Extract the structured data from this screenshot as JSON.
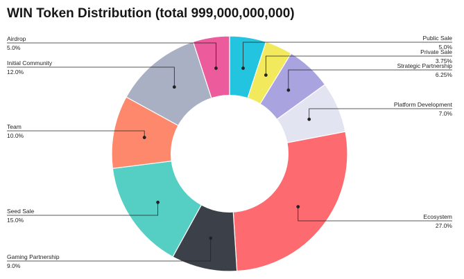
{
  "chart_data": {
    "type": "pie",
    "donut": true,
    "title": "WIN Token Distribution (total 999,000,000,000)",
    "start": "top, clockwise",
    "slices": [
      {
        "name": "Public Sale",
        "label": "5.0%",
        "value": 5.0,
        "color": "#22c4e0",
        "side": "right"
      },
      {
        "name": "Private Sale",
        "label": "3.75%",
        "value": 3.75,
        "color": "#f2ea5c",
        "side": "right"
      },
      {
        "name": "Strategic Partnership",
        "label": "6.25%",
        "value": 6.25,
        "color": "#a9a4e0",
        "side": "right"
      },
      {
        "name": "Platform Development",
        "label": "7.0%",
        "value": 7.0,
        "color": "#e3e4f1",
        "side": "right"
      },
      {
        "name": "Ecosystem",
        "label": "27.0%",
        "value": 27.0,
        "color": "#fd6a6f",
        "side": "right"
      },
      {
        "name": "Gaming Partnership",
        "label": "9.0%",
        "value": 9.0,
        "color": "#3c4149",
        "side": "left"
      },
      {
        "name": "Seed Sale",
        "label": "15.0%",
        "value": 15.0,
        "color": "#55cfc4",
        "side": "left"
      },
      {
        "name": "Team",
        "label": "10.0%",
        "value": 10.0,
        "color": "#fe886b",
        "side": "left"
      },
      {
        "name": "Initial Community",
        "label": "12.0%",
        "value": 12.0,
        "color": "#a9b0c3",
        "side": "left"
      },
      {
        "name": "Airdrop",
        "label": "5.0%",
        "value": 5.0,
        "color": "#ec5b9b",
        "side": "left"
      }
    ]
  }
}
